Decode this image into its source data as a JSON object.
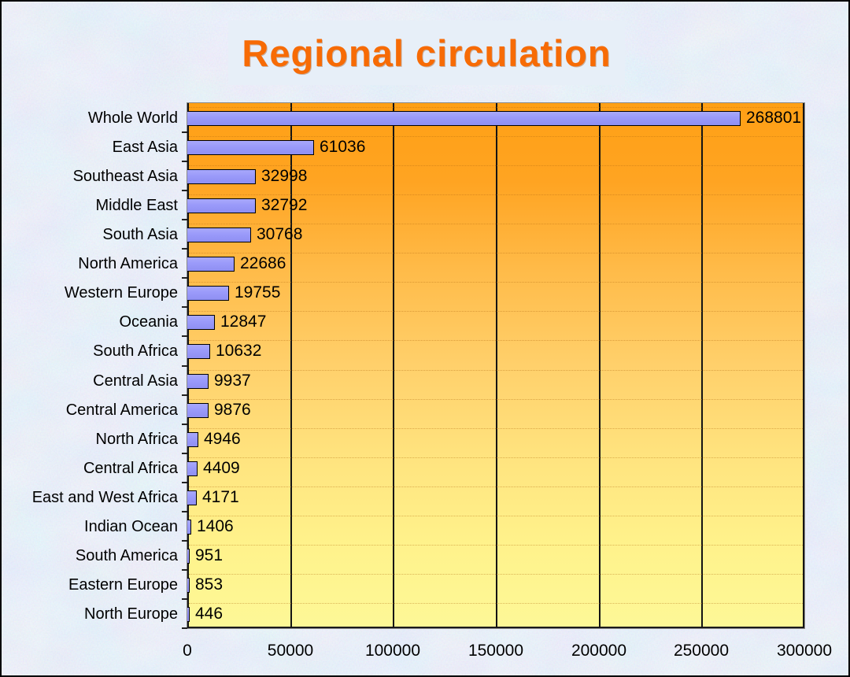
{
  "title": "Regional circulation",
  "chart_data": {
    "type": "bar",
    "orientation": "horizontal",
    "title": "Regional circulation",
    "categories": [
      "Whole World",
      "East Asia",
      "Southeast Asia",
      "Middle East",
      "South Asia",
      "North America",
      "Western Europe",
      "Oceania",
      "South Africa",
      "Central Asia",
      "Central America",
      "North Africa",
      "Central Africa",
      "East and West Africa",
      "Indian Ocean",
      "South America",
      "Eastern Europe",
      "North Europe"
    ],
    "values": [
      268801,
      61036,
      32998,
      32792,
      30768,
      22686,
      19755,
      12847,
      10632,
      9937,
      9876,
      4946,
      4409,
      4171,
      1406,
      951,
      853,
      446
    ],
    "data_labels": [
      "268801",
      "61036",
      "32998",
      "32792",
      "30768",
      "22686",
      "19755",
      "12847",
      "10632",
      "9937",
      "9876",
      "4946",
      "4409",
      "4171",
      "1406",
      "951",
      "853",
      "446"
    ],
    "xlim": [
      0,
      300000
    ],
    "x_ticks": [
      0,
      50000,
      100000,
      150000,
      200000,
      250000,
      300000
    ],
    "x_tick_labels": [
      "0",
      "50000",
      "100000",
      "150000",
      "200000",
      "250000",
      "300000"
    ],
    "grid": "vertical-solid-black",
    "legend": "none",
    "colors": {
      "bar_fill": "#9a9afa",
      "bar_border": "#000000",
      "plot_gradient_top": "#ffa015",
      "plot_gradient_bottom": "#fdf897",
      "gridline": "#141414",
      "title_color": "#f76b05",
      "title_box_bg": "#e7eff8",
      "page_background": "#cdddf0",
      "label_text": "#000000"
    }
  }
}
